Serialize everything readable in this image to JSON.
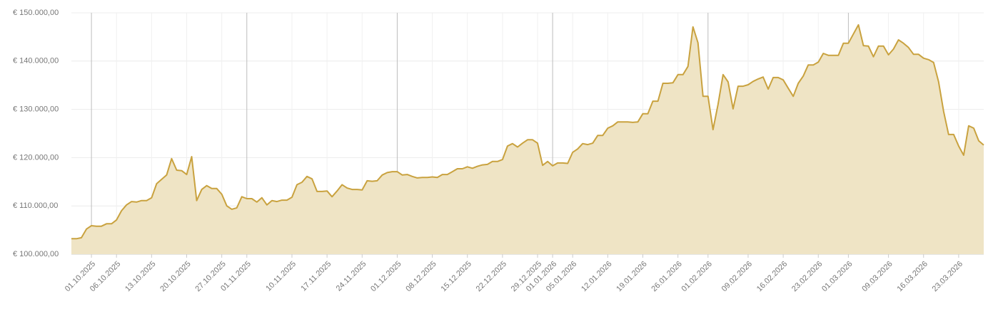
{
  "chart_data": {
    "type": "area",
    "x": [
      "27.09.2025",
      "28.09.2025",
      "29.09.2025",
      "30.09.2025",
      "01.10.2025",
      "02.10.2025",
      "03.10.2025",
      "04.10.2025",
      "05.10.2025",
      "06.10.2025",
      "07.10.2025",
      "08.10.2025",
      "09.10.2025",
      "10.10.2025",
      "11.10.2025",
      "12.10.2025",
      "13.10.2025",
      "14.10.2025",
      "15.10.2025",
      "16.10.2025",
      "17.10.2025",
      "18.10.2025",
      "19.10.2025",
      "20.10.2025",
      "21.10.2025",
      "22.10.2025",
      "23.10.2025",
      "24.10.2025",
      "25.10.2025",
      "26.10.2025",
      "27.10.2025",
      "28.10.2025",
      "29.10.2025",
      "30.10.2025",
      "31.10.2025",
      "01.11.2025",
      "02.11.2025",
      "03.11.2025",
      "04.11.2025",
      "05.11.2025",
      "06.11.2025",
      "07.11.2025",
      "08.11.2025",
      "09.11.2025",
      "10.11.2025",
      "11.11.2025",
      "12.11.2025",
      "13.11.2025",
      "14.11.2025",
      "15.11.2025",
      "16.11.2025",
      "17.11.2025",
      "18.11.2025",
      "19.11.2025",
      "20.11.2025",
      "21.11.2025",
      "22.11.2025",
      "23.11.2025",
      "24.11.2025",
      "25.11.2025",
      "26.11.2025",
      "27.11.2025",
      "28.11.2025",
      "29.11.2025",
      "30.11.2025",
      "01.12.2025",
      "02.12.2025",
      "03.12.2025",
      "04.12.2025",
      "05.12.2025",
      "06.12.2025",
      "07.12.2025",
      "08.12.2025",
      "09.12.2025",
      "10.12.2025",
      "11.12.2025",
      "12.12.2025",
      "13.12.2025",
      "14.12.2025",
      "15.12.2025",
      "16.12.2025",
      "17.12.2025",
      "18.12.2025",
      "19.12.2025",
      "20.12.2025",
      "21.12.2025",
      "22.12.2025",
      "23.12.2025",
      "24.12.2025",
      "25.12.2025",
      "26.12.2025",
      "27.12.2025",
      "28.12.2025",
      "29.12.2025",
      "30.12.2025",
      "31.12.2025",
      "01.01.2026",
      "02.01.2026",
      "03.01.2026",
      "04.01.2026",
      "05.01.2026",
      "06.01.2026",
      "07.01.2026",
      "08.01.2026",
      "09.01.2026",
      "10.01.2026",
      "11.01.2026",
      "12.01.2026",
      "13.01.2026",
      "14.01.2026",
      "15.01.2026",
      "16.01.2026",
      "17.01.2026",
      "18.01.2026",
      "19.01.2026",
      "20.01.2026",
      "21.01.2026",
      "22.01.2026",
      "23.01.2026",
      "24.01.2026",
      "25.01.2026",
      "26.01.2026",
      "27.01.2026",
      "28.01.2026",
      "29.01.2026",
      "30.01.2026",
      "31.01.2026",
      "01.02.2026",
      "02.02.2026",
      "03.02.2026",
      "04.02.2026",
      "05.02.2026",
      "06.02.2026",
      "07.02.2026",
      "08.02.2026",
      "09.02.2026",
      "10.02.2026",
      "11.02.2026",
      "12.02.2026",
      "13.02.2026",
      "14.02.2026",
      "15.02.2026",
      "16.02.2026",
      "17.02.2026",
      "18.02.2026",
      "19.02.2026",
      "20.02.2026",
      "21.02.2026",
      "22.02.2026",
      "23.02.2026",
      "24.02.2026",
      "25.02.2026",
      "26.02.2026",
      "27.02.2026",
      "28.02.2026",
      "01.03.2026",
      "02.03.2026",
      "03.03.2026",
      "04.03.2026",
      "05.03.2026",
      "06.03.2026",
      "07.03.2026",
      "08.03.2026",
      "09.03.2026",
      "10.03.2026",
      "11.03.2026",
      "12.03.2026",
      "13.03.2026",
      "14.03.2026",
      "15.03.2026",
      "16.03.2026",
      "17.03.2026",
      "18.03.2026",
      "19.03.2026",
      "20.03.2026",
      "21.03.2026",
      "22.03.2026",
      "23.03.2026",
      "24.03.2026",
      "25.03.2026",
      "26.03.2026",
      "27.03.2026",
      "28.03.2026"
    ],
    "values": [
      103200,
      103200,
      103400,
      105200,
      105900,
      105800,
      105800,
      106300,
      106300,
      107100,
      109000,
      110200,
      110900,
      110800,
      111100,
      111100,
      111700,
      114600,
      115500,
      116400,
      119800,
      117400,
      117300,
      116500,
      120200,
      111100,
      113400,
      114200,
      113600,
      113600,
      112400,
      110000,
      109300,
      109600,
      111900,
      111500,
      111500,
      110800,
      111700,
      110200,
      111100,
      110900,
      111200,
      111200,
      111800,
      114400,
      114900,
      116100,
      115600,
      113000,
      113000,
      113100,
      111900,
      113100,
      114400,
      113700,
      113400,
      113400,
      113300,
      115200,
      115100,
      115200,
      116400,
      116900,
      117100,
      117100,
      116400,
      116500,
      116100,
      115800,
      115900,
      115900,
      116000,
      115900,
      116500,
      116500,
      117100,
      117700,
      117700,
      118100,
      117800,
      118200,
      118500,
      118600,
      119200,
      119200,
      119600,
      122400,
      122900,
      122200,
      123000,
      123700,
      123700,
      123000,
      118400,
      119200,
      118300,
      118900,
      118900,
      118800,
      121100,
      121800,
      122900,
      122700,
      123000,
      124600,
      124600,
      126100,
      126600,
      127400,
      127400,
      127400,
      127300,
      127400,
      129100,
      129100,
      131700,
      131700,
      135400,
      135400,
      135500,
      137200,
      137200,
      138900,
      147100,
      143800,
      132700,
      132700,
      125800,
      131000,
      137200,
      135700,
      130100,
      134800,
      134800,
      135100,
      135800,
      136300,
      136700,
      134200,
      136600,
      136600,
      136100,
      134400,
      132700,
      135400,
      136900,
      139200,
      139200,
      139800,
      141600,
      141200,
      141200,
      141200,
      143700,
      143700,
      145600,
      147500,
      143200,
      143100,
      140900,
      143100,
      143100,
      141300,
      142500,
      144400,
      143700,
      142800,
      141400,
      141400,
      140600,
      140300,
      139700,
      135700,
      129600,
      124800,
      124800,
      122400,
      120500,
      126600,
      126100,
      123500,
      122600
    ],
    "color": "#c9a23f",
    "fill": "#efe4c5",
    "xlim": [
      "27.09.2025",
      "28.03.2026"
    ],
    "xticks": [
      "01.10.2025",
      "06.10.2025",
      "13.10.2025",
      "20.10.2025",
      "27.10.2025",
      "01.11.2025",
      "10.11.2025",
      "17.11.2025",
      "24.11.2025",
      "01.12.2025",
      "08.12.2025",
      "15.12.2025",
      "22.12.2025",
      "29.12.2025",
      "01.01.2026",
      "05.01.2026",
      "12.01.2026",
      "19.01.2026",
      "26.01.2026",
      "01.02.2026",
      "09.02.2026",
      "16.02.2026",
      "23.02.2026",
      "01.03.2026",
      "09.03.2026",
      "16.03.2026",
      "23.03.2026"
    ],
    "ylim": [
      100000,
      150000
    ],
    "yticks": [
      {
        "value": 100000,
        "label": "€ 100.000,00"
      },
      {
        "value": 110000,
        "label": "€ 110.000,00"
      },
      {
        "value": 120000,
        "label": "€ 120.000,00"
      },
      {
        "value": 130000,
        "label": "€ 130.000,00"
      },
      {
        "value": 140000,
        "label": "€ 140.000,00"
      },
      {
        "value": 150000,
        "label": "€ 150.000,00"
      }
    ],
    "grid": true
  }
}
